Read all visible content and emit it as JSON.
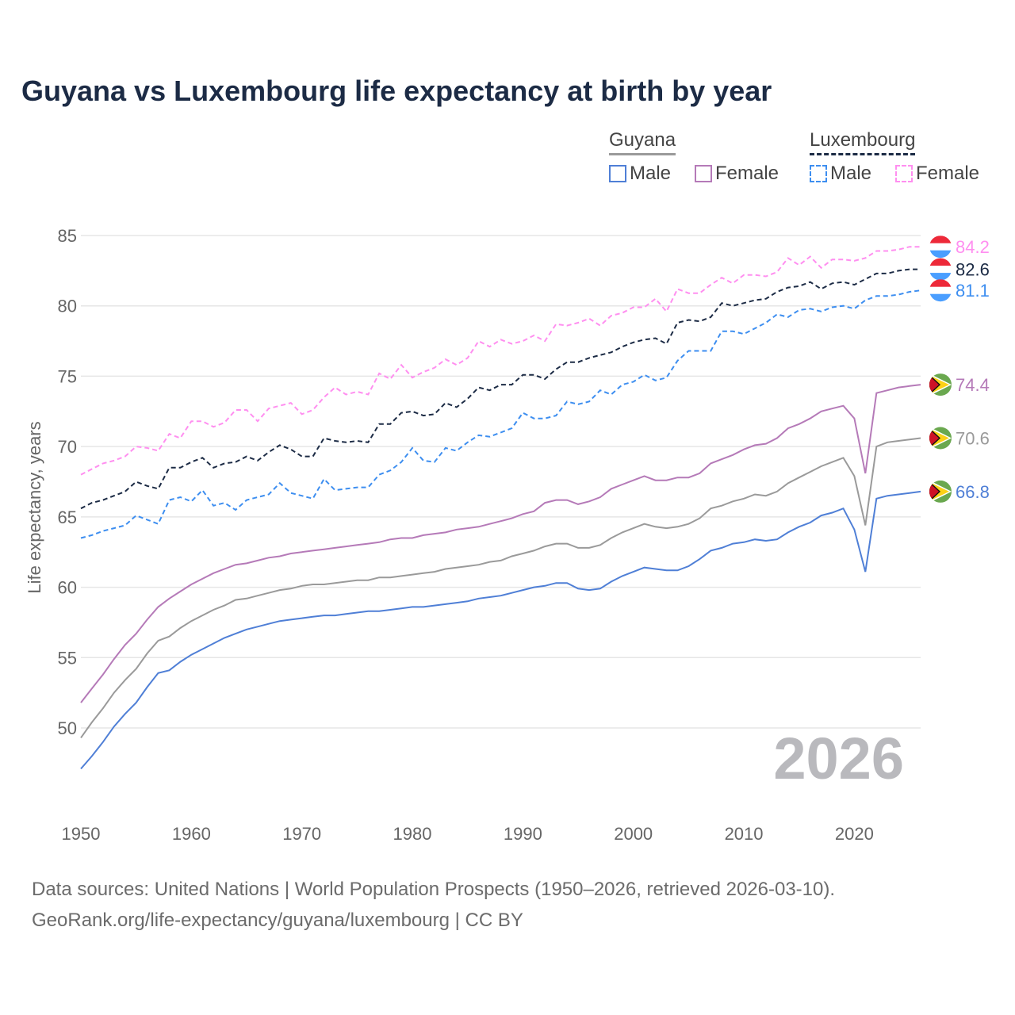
{
  "chart_data": {
    "type": "line",
    "title": "Guyana vs Luxembourg life expectancy at birth by year",
    "xlabel": "",
    "ylabel": "Life expectancy, years",
    "xlim": [
      1950,
      2026
    ],
    "ylim": [
      46.5,
      87
    ],
    "x_ticks": [
      "1950",
      "1960",
      "1970",
      "1980",
      "1990",
      "2000",
      "2010",
      "2020"
    ],
    "y_ticks": [
      "50",
      "55",
      "60",
      "65",
      "70",
      "75",
      "80",
      "85"
    ],
    "grid": true,
    "year_watermark": "2026",
    "legend": {
      "placement": "top-right",
      "groups": [
        {
          "country": "Guyana",
          "items": [
            "Male",
            "Female"
          ]
        },
        {
          "country": "Luxembourg",
          "items": [
            "Male",
            "Female"
          ]
        }
      ]
    },
    "series": [
      {
        "name": "Luxembourg Female",
        "color": "#ff8ff0",
        "dashed": true,
        "end_label": "84.2",
        "values": [
          68.0,
          68.4,
          68.8,
          69.0,
          69.3,
          70.0,
          69.9,
          69.7,
          70.9,
          70.6,
          71.8,
          71.8,
          71.4,
          71.7,
          72.6,
          72.6,
          71.8,
          72.7,
          72.9,
          73.1,
          72.3,
          72.6,
          73.5,
          74.2,
          73.7,
          73.9,
          73.7,
          75.2,
          74.8,
          75.8,
          74.9,
          75.3,
          75.6,
          76.2,
          75.8,
          76.3,
          77.5,
          77.1,
          77.6,
          77.3,
          77.5,
          77.9,
          77.5,
          78.7,
          78.6,
          78.8,
          79.1,
          78.6,
          79.3,
          79.5,
          79.9,
          79.9,
          80.5,
          79.6,
          81.2,
          80.9,
          80.9,
          81.5,
          82.0,
          81.6,
          82.2,
          82.2,
          82.1,
          82.4,
          83.4,
          82.9,
          83.5,
          82.7,
          83.3,
          83.3,
          83.2,
          83.4,
          83.9,
          83.9,
          84.0,
          84.2,
          84.2
        ]
      },
      {
        "name": "Luxembourg",
        "color": "#1c2b45",
        "dashed": true,
        "end_label": "82.6",
        "values": [
          65.6,
          66.0,
          66.2,
          66.5,
          66.8,
          67.5,
          67.2,
          67.0,
          68.5,
          68.5,
          68.9,
          69.2,
          68.5,
          68.8,
          68.9,
          69.3,
          69.0,
          69.6,
          70.1,
          69.8,
          69.3,
          69.3,
          70.6,
          70.4,
          70.3,
          70.4,
          70.3,
          71.6,
          71.6,
          72.4,
          72.5,
          72.2,
          72.3,
          73.1,
          72.8,
          73.4,
          74.2,
          74.0,
          74.4,
          74.4,
          75.1,
          75.1,
          74.8,
          75.5,
          76.0,
          76.0,
          76.3,
          76.5,
          76.7,
          77.1,
          77.4,
          77.6,
          77.7,
          77.3,
          78.8,
          79.0,
          78.9,
          79.2,
          80.2,
          80.0,
          80.2,
          80.4,
          80.5,
          81.0,
          81.3,
          81.4,
          81.7,
          81.2,
          81.6,
          81.7,
          81.5,
          81.9,
          82.3,
          82.3,
          82.5,
          82.6,
          82.6
        ]
      },
      {
        "name": "Luxembourg Male",
        "color": "#3d8ef0",
        "dashed": true,
        "end_label": "81.1",
        "values": [
          63.5,
          63.7,
          64.0,
          64.2,
          64.4,
          65.1,
          64.8,
          64.5,
          66.2,
          66.4,
          66.1,
          66.9,
          65.8,
          66.0,
          65.5,
          66.2,
          66.4,
          66.6,
          67.4,
          66.7,
          66.5,
          66.3,
          67.7,
          66.9,
          67.0,
          67.1,
          67.1,
          68.0,
          68.3,
          68.9,
          69.9,
          69.0,
          68.9,
          69.9,
          69.7,
          70.3,
          70.8,
          70.7,
          71.0,
          71.3,
          72.4,
          72.0,
          72.0,
          72.2,
          73.2,
          73.0,
          73.2,
          74.0,
          73.7,
          74.4,
          74.6,
          75.1,
          74.7,
          74.9,
          76.1,
          76.8,
          76.8,
          76.8,
          78.2,
          78.2,
          78.0,
          78.4,
          78.8,
          79.4,
          79.2,
          79.7,
          79.8,
          79.6,
          79.9,
          80.0,
          79.8,
          80.4,
          80.7,
          80.7,
          80.8,
          81.0,
          81.1
        ]
      },
      {
        "name": "Guyana Female",
        "color": "#b57ab8",
        "dashed": false,
        "end_label": "74.4",
        "values": [
          51.8,
          52.8,
          53.8,
          54.9,
          55.9,
          56.7,
          57.7,
          58.6,
          59.2,
          59.7,
          60.2,
          60.6,
          61.0,
          61.3,
          61.6,
          61.7,
          61.9,
          62.1,
          62.2,
          62.4,
          62.5,
          62.6,
          62.7,
          62.8,
          62.9,
          63.0,
          63.1,
          63.2,
          63.4,
          63.5,
          63.5,
          63.7,
          63.8,
          63.9,
          64.1,
          64.2,
          64.3,
          64.5,
          64.7,
          64.9,
          65.2,
          65.4,
          66.0,
          66.2,
          66.2,
          65.9,
          66.1,
          66.4,
          67.0,
          67.3,
          67.6,
          67.9,
          67.6,
          67.6,
          67.8,
          67.8,
          68.1,
          68.8,
          69.1,
          69.4,
          69.8,
          70.1,
          70.2,
          70.6,
          71.3,
          71.6,
          72.0,
          72.5,
          72.7,
          72.9,
          72.0,
          68.1,
          73.8,
          74.0,
          74.2,
          74.3,
          74.4
        ]
      },
      {
        "name": "Guyana",
        "color": "#9a9a9a",
        "dashed": false,
        "end_label": "70.6",
        "values": [
          49.3,
          50.4,
          51.4,
          52.5,
          53.4,
          54.2,
          55.3,
          56.2,
          56.5,
          57.1,
          57.6,
          58.0,
          58.4,
          58.7,
          59.1,
          59.2,
          59.4,
          59.6,
          59.8,
          59.9,
          60.1,
          60.2,
          60.2,
          60.3,
          60.4,
          60.5,
          60.5,
          60.7,
          60.7,
          60.8,
          60.9,
          61.0,
          61.1,
          61.3,
          61.4,
          61.5,
          61.6,
          61.8,
          61.9,
          62.2,
          62.4,
          62.6,
          62.9,
          63.1,
          63.1,
          62.8,
          62.8,
          63.0,
          63.5,
          63.9,
          64.2,
          64.5,
          64.3,
          64.2,
          64.3,
          64.5,
          64.9,
          65.6,
          65.8,
          66.1,
          66.3,
          66.6,
          66.5,
          66.8,
          67.4,
          67.8,
          68.2,
          68.6,
          68.9,
          69.2,
          67.9,
          64.4,
          70.0,
          70.3,
          70.4,
          70.5,
          70.6
        ]
      },
      {
        "name": "Guyana Male",
        "color": "#4f7fd6",
        "dashed": false,
        "end_label": "66.8",
        "values": [
          47.1,
          48.0,
          49.0,
          50.1,
          51.0,
          51.8,
          52.9,
          53.9,
          54.1,
          54.7,
          55.2,
          55.6,
          56.0,
          56.4,
          56.7,
          57.0,
          57.2,
          57.4,
          57.6,
          57.7,
          57.8,
          57.9,
          58.0,
          58.0,
          58.1,
          58.2,
          58.3,
          58.3,
          58.4,
          58.5,
          58.6,
          58.6,
          58.7,
          58.8,
          58.9,
          59.0,
          59.2,
          59.3,
          59.4,
          59.6,
          59.8,
          60.0,
          60.1,
          60.3,
          60.3,
          59.9,
          59.8,
          59.9,
          60.4,
          60.8,
          61.1,
          61.4,
          61.3,
          61.2,
          61.2,
          61.5,
          62.0,
          62.6,
          62.8,
          63.1,
          63.2,
          63.4,
          63.3,
          63.4,
          63.9,
          64.3,
          64.6,
          65.1,
          65.3,
          65.6,
          64.1,
          61.1,
          66.3,
          66.5,
          66.6,
          66.7,
          66.8
        ]
      }
    ]
  },
  "legend_labels": {
    "guyana": "Guyana",
    "luxembourg": "Luxembourg",
    "male": "Male",
    "female": "Female"
  },
  "footer": {
    "line1": "Data sources: United Nations | World Population Prospects (1950–2026, retrieved 2026-03-10).",
    "line2": "GeoRank.org/life-expectancy/guyana/luxembourg | CC BY"
  }
}
